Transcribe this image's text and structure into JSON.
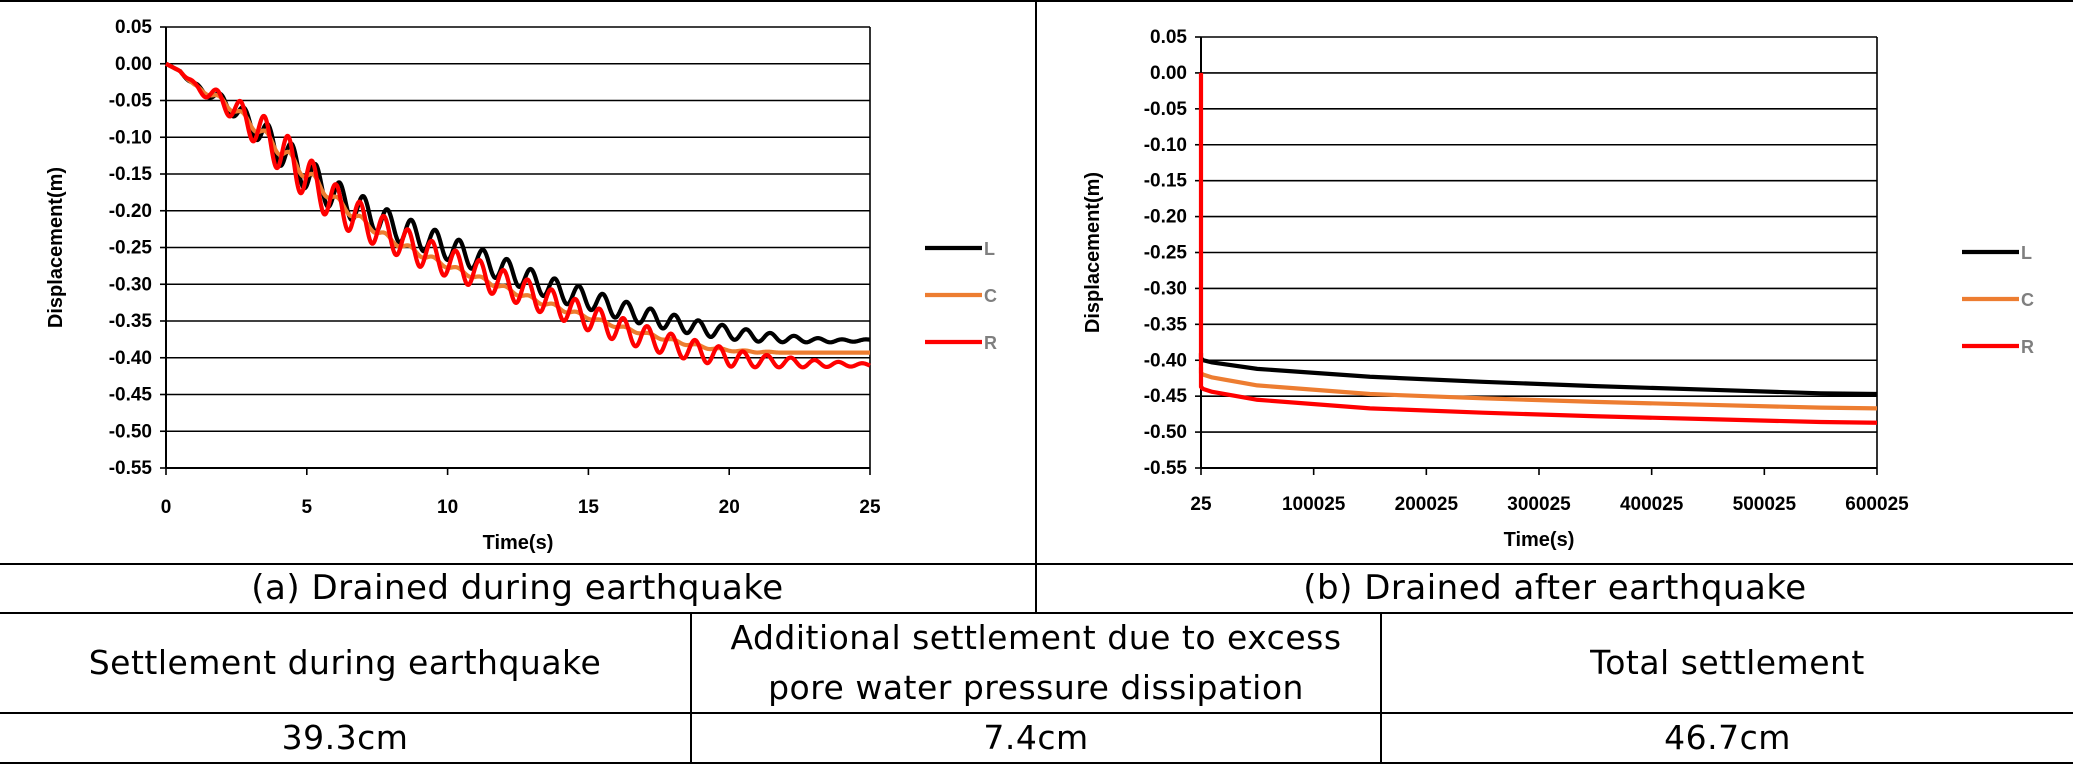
{
  "chart_data": [
    {
      "type": "line",
      "id": "a",
      "xlabel": "Time(s)",
      "ylabel": "Displacement(m)",
      "xlim": [
        0,
        25
      ],
      "ylim": [
        -0.55,
        0.05
      ],
      "x_ticks": [
        0,
        5,
        10,
        15,
        20,
        25
      ],
      "y_ticks": [
        0.05,
        0.0,
        -0.05,
        -0.1,
        -0.15,
        -0.2,
        -0.25,
        -0.3,
        -0.35,
        -0.4,
        -0.45,
        -0.5,
        -0.55
      ],
      "grid": "horizontal",
      "legend": "right",
      "series": [
        {
          "name": "L",
          "color": "#000000",
          "x": [
            0,
            0.5,
            1,
            2,
            3,
            4,
            5,
            6,
            7,
            8,
            9,
            10,
            11,
            12,
            13,
            14,
            15,
            16,
            17,
            18,
            19,
            20,
            21,
            22,
            23,
            24,
            25
          ],
          "y": [
            0,
            -0.01,
            -0.03,
            -0.05,
            -0.08,
            -0.115,
            -0.15,
            -0.18,
            -0.2,
            -0.22,
            -0.235,
            -0.25,
            -0.265,
            -0.28,
            -0.295,
            -0.31,
            -0.32,
            -0.333,
            -0.343,
            -0.352,
            -0.36,
            -0.366,
            -0.371,
            -0.374,
            -0.376,
            -0.377,
            -0.376
          ],
          "oscillation_amplitude": [
            0,
            0,
            0.004,
            0.008,
            0.015,
            0.022,
            0.023,
            0.022,
            0.02,
            0.019,
            0.018,
            0.017,
            0.016,
            0.016,
            0.015,
            0.015,
            0.014,
            0.013,
            0.012,
            0.011,
            0.01,
            0.009,
            0.007,
            0.005,
            0.003,
            0.002,
            0.001
          ]
        },
        {
          "name": "C",
          "color": "#ed7d31",
          "x": [
            0,
            0.5,
            1,
            2,
            3,
            4,
            5,
            6,
            7,
            8,
            9,
            10,
            11,
            12,
            13,
            14,
            15,
            16,
            17,
            18,
            19,
            20,
            21,
            22,
            23,
            24,
            25
          ],
          "y": [
            0,
            -0.01,
            -0.03,
            -0.05,
            -0.08,
            -0.115,
            -0.15,
            -0.185,
            -0.215,
            -0.24,
            -0.258,
            -0.275,
            -0.29,
            -0.305,
            -0.32,
            -0.333,
            -0.345,
            -0.357,
            -0.367,
            -0.377,
            -0.385,
            -0.39,
            -0.392,
            -0.393,
            -0.393,
            -0.393,
            -0.393
          ],
          "oscillation_amplitude": [
            0,
            0,
            0.002,
            0.004,
            0.006,
            0.008,
            0.008,
            0.006,
            0.005,
            0.004,
            0.004,
            0.003,
            0.003,
            0.003,
            0.003,
            0.003,
            0.002,
            0.002,
            0.002,
            0.002,
            0.002,
            0.001,
            0.001,
            0,
            0,
            0,
            0
          ]
        },
        {
          "name": "R",
          "color": "#ff0000",
          "x": [
            0,
            0.5,
            1,
            2,
            3,
            4,
            5,
            6,
            7,
            8,
            9,
            10,
            11,
            12,
            13,
            14,
            15,
            16,
            17,
            18,
            19,
            20,
            21,
            22,
            23,
            24,
            25
          ],
          "y": [
            0,
            -0.01,
            -0.03,
            -0.05,
            -0.08,
            -0.115,
            -0.155,
            -0.19,
            -0.215,
            -0.235,
            -0.255,
            -0.27,
            -0.285,
            -0.3,
            -0.315,
            -0.33,
            -0.345,
            -0.36,
            -0.372,
            -0.383,
            -0.392,
            -0.4,
            -0.404,
            -0.406,
            -0.408,
            -0.409,
            -0.41
          ],
          "oscillation_amplitude": [
            0,
            0,
            0.005,
            0.012,
            0.022,
            0.03,
            0.03,
            0.027,
            0.024,
            0.022,
            0.021,
            0.02,
            0.02,
            0.019,
            0.019,
            0.018,
            0.018,
            0.017,
            0.016,
            0.015,
            0.014,
            0.012,
            0.009,
            0.007,
            0.005,
            0.003,
            0.002
          ]
        }
      ]
    },
    {
      "type": "line",
      "id": "b",
      "xlabel": "Time(s)",
      "ylabel": "Displacement(m)",
      "xlim": [
        25,
        600025
      ],
      "ylim": [
        -0.55,
        0.05
      ],
      "x_ticks": [
        25,
        100025,
        200025,
        300025,
        400025,
        500025,
        600025
      ],
      "y_ticks": [
        0.05,
        0.0,
        -0.05,
        -0.1,
        -0.15,
        -0.2,
        -0.25,
        -0.3,
        -0.35,
        -0.4,
        -0.45,
        -0.5,
        -0.55
      ],
      "grid": "horizontal",
      "legend": "right",
      "series": [
        {
          "name": "L",
          "color": "#000000",
          "x": [
            25,
            25,
            2000,
            10000,
            50000,
            150000,
            250000,
            350000,
            450000,
            550000,
            600025
          ],
          "y": [
            -0.39,
            -0.397,
            -0.4,
            -0.403,
            -0.412,
            -0.423,
            -0.43,
            -0.436,
            -0.441,
            -0.446,
            -0.447
          ]
        },
        {
          "name": "C",
          "color": "#ed7d31",
          "x": [
            25,
            25,
            2000,
            10000,
            50000,
            150000,
            250000,
            350000,
            450000,
            550000,
            600025
          ],
          "y": [
            -0.41,
            -0.418,
            -0.42,
            -0.424,
            -0.435,
            -0.447,
            -0.453,
            -0.458,
            -0.462,
            -0.466,
            -0.467
          ]
        },
        {
          "name": "R",
          "color": "#ff0000",
          "x": [
            25,
            25,
            2000,
            10000,
            50000,
            150000,
            250000,
            350000,
            450000,
            550000,
            600025
          ],
          "y": [
            0.0,
            -0.437,
            -0.44,
            -0.444,
            -0.455,
            -0.467,
            -0.473,
            -0.478,
            -0.482,
            -0.486,
            -0.487
          ]
        }
      ]
    }
  ],
  "captions": {
    "a": "(a) Drained during earthquake",
    "b": "(b) Drained after earthquake"
  },
  "table": {
    "headers": [
      "Settlement during earthquake",
      "Additional settlement due to excess pore water pressure dissipation",
      "Total settlement"
    ],
    "values": [
      "39.3cm",
      "7.4cm",
      "46.7cm"
    ]
  }
}
